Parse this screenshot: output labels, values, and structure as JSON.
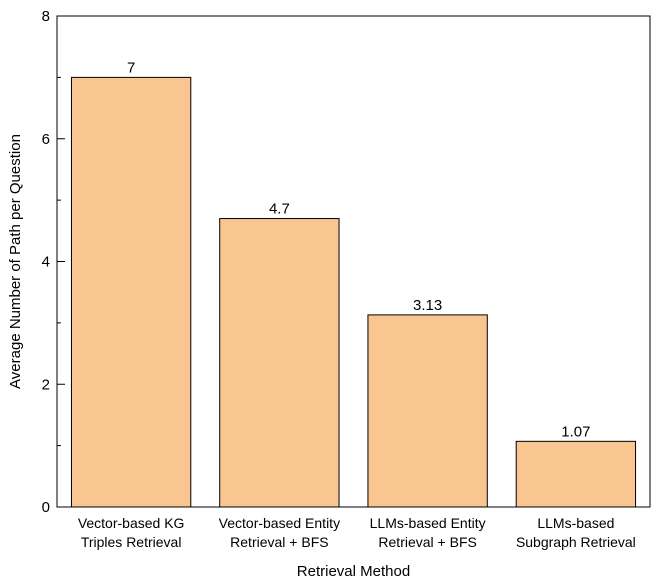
{
  "chart_data": {
    "type": "bar",
    "xlabel": "Retrieval Method",
    "ylabel": "Average Number of Path per Question",
    "ylim": [
      0,
      8
    ],
    "yticks": [
      0,
      2,
      4,
      6,
      8
    ],
    "grid": false,
    "bar_color": "#F9C590",
    "categories": [
      [
        "Vector-based KG",
        "Triples Retrieval"
      ],
      [
        "Vector-based Entity",
        "Retrieval + BFS"
      ],
      [
        "LLMs-based Entity",
        "Retrieval + BFS"
      ],
      [
        "LLMs-based",
        "Subgraph Retrieval"
      ]
    ],
    "values": [
      7,
      4.7,
      3.13,
      1.07
    ],
    "value_labels": [
      "7",
      "4.7",
      "3.13",
      "1.07"
    ]
  }
}
